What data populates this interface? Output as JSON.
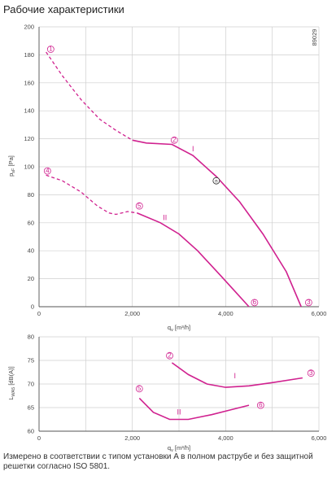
{
  "header": {
    "title": "Рабочие характеристики"
  },
  "caption": "Измерено в соответствии с типом установки A в полном раструбе и без защитной решетки согласно ISO 5801.",
  "colors": {
    "curve": "#d0218f",
    "grid": "#cfcfcf",
    "axis": "#555555",
    "text": "#333333"
  },
  "chart_data": [
    {
      "type": "line",
      "id_label": "89029",
      "xlabel": "q_v [m³/h]",
      "ylabel": "p_sF [Pa]",
      "xlim": [
        0,
        6000
      ],
      "ylim": [
        0,
        200
      ],
      "x_ticks": [
        "0",
        "2,000",
        "4,000",
        "6,000"
      ],
      "y_ticks": [
        "0",
        "20",
        "40",
        "60",
        "80",
        "100",
        "120",
        "140",
        "160",
        "180",
        "200"
      ],
      "grid": true,
      "series": [
        {
          "name": "I",
          "start_marker": "1",
          "end_marker": "3",
          "dashed": {
            "x": [
              150,
              500,
              900,
              1300,
              1650,
              2000
            ],
            "y": [
              182,
              165,
              148,
              134,
              126,
              119
            ]
          },
          "solid": {
            "x": [
              2000,
              2300,
              2850,
              3300,
              3800,
              4300,
              4800,
              5300,
              5620
            ],
            "y": [
              119,
              117,
              116,
              108,
              93,
              75,
              52,
              25,
              0
            ]
          },
          "marker_points": [
            {
              "label": "1",
              "x": 250,
              "y": 184
            },
            {
              "label": "2",
              "x": 2900,
              "y": 119
            },
            {
              "label": "3",
              "x": 5780,
              "y": 3
            }
          ]
        },
        {
          "name": "II",
          "start_marker": "4",
          "end_marker": "6",
          "dashed": {
            "x": [
              150,
              500,
              900,
              1250,
              1500,
              1650,
              1900,
              2100
            ],
            "y": [
              94,
              90,
              82,
              72,
              67,
              66,
              68,
              67
            ]
          },
          "solid": {
            "x": [
              2100,
              2600,
              3000,
              3400,
              3900,
              4200,
              4500
            ],
            "y": [
              67,
              60,
              52,
              40,
              22,
              11,
              0
            ]
          },
          "marker_points": [
            {
              "label": "4",
              "x": 180,
              "y": 97
            },
            {
              "label": "5",
              "x": 2150,
              "y": 72
            },
            {
              "label": "6",
              "x": 4620,
              "y": 3
            }
          ]
        }
      ],
      "operating_point": {
        "label": "n",
        "x": 3800,
        "y": 90
      }
    },
    {
      "type": "line",
      "xlabel": "q_v [m³/h]",
      "ylabel": "L_WA5 [dB(A)]",
      "xlim": [
        0,
        6000
      ],
      "ylim": [
        60,
        80
      ],
      "x_ticks": [
        "0",
        "2,000",
        "4,000",
        "6,000"
      ],
      "y_ticks": [
        "60",
        "65",
        "70",
        "75",
        "80"
      ],
      "grid": true,
      "series": [
        {
          "name": "I",
          "x": [
            2850,
            3200,
            3600,
            4000,
            4500,
            5000,
            5650
          ],
          "y": [
            74.5,
            72,
            70,
            69.3,
            69.6,
            70.3,
            71.3
          ],
          "marker_points": [
            {
              "label": "2",
              "x": 2800,
              "y": 76
            },
            {
              "label": "3",
              "x": 5830,
              "y": 72.3
            }
          ]
        },
        {
          "name": "II",
          "x": [
            2150,
            2450,
            2800,
            3200,
            3700,
            4100,
            4500
          ],
          "y": [
            67,
            64,
            62.5,
            62.5,
            63.5,
            64.5,
            65.5
          ],
          "marker_points": [
            {
              "label": "5",
              "x": 2150,
              "y": 69
            },
            {
              "label": "6",
              "x": 4750,
              "y": 65.5
            }
          ]
        }
      ]
    }
  ],
  "labels": {
    "top_ylabel_main": "p",
    "top_ylabel_sub": "sF",
    "top_ylabel_unit": "[Pa]",
    "bottom_ylabel_main": "L",
    "bottom_ylabel_sub": "WA5",
    "bottom_ylabel_unit": "[dB(A)]",
    "xlabel_main": "q",
    "xlabel_sub": "v",
    "xlabel_unit": "[m³/h]"
  }
}
